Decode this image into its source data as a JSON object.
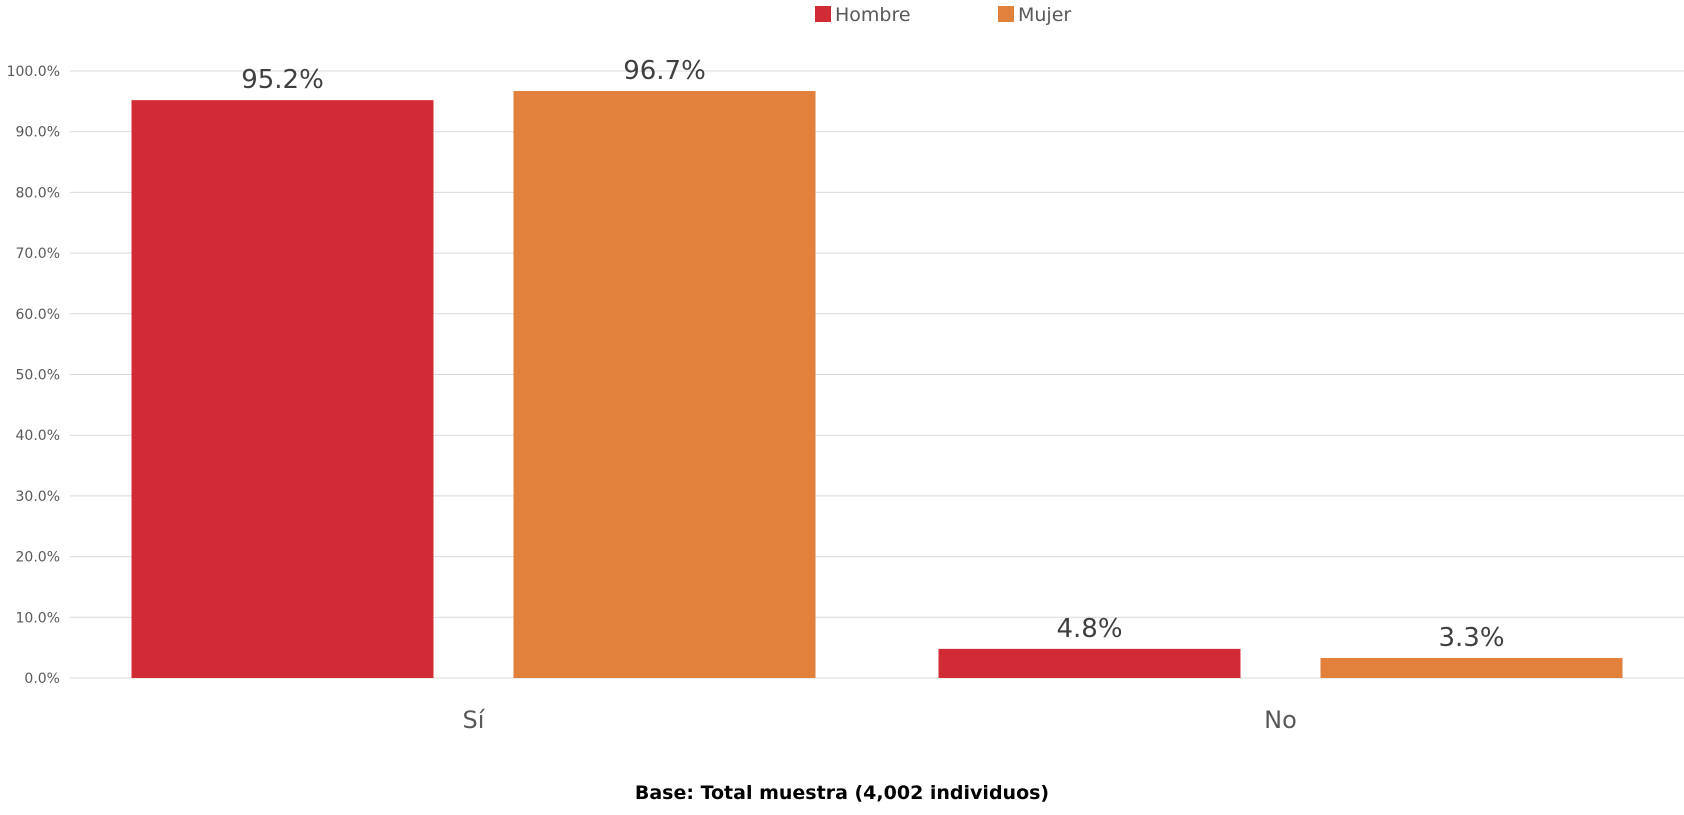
{
  "chart_data": {
    "type": "bar",
    "categories": [
      "Sí",
      "No"
    ],
    "series": [
      {
        "name": "Hombre",
        "values": [
          95.2,
          4.8
        ],
        "labels": [
          "95.2%",
          "4.8%"
        ],
        "color": "#d12c36"
      },
      {
        "name": "Mujer",
        "values": [
          96.7,
          3.3
        ],
        "labels": [
          "96.7%",
          "3.3%"
        ],
        "color": "#e1813c"
      }
    ],
    "ylim": [
      0,
      100
    ],
    "yticks": [
      "0.0%",
      "10.0%",
      "20.0%",
      "30.0%",
      "40.0%",
      "50.0%",
      "60.0%",
      "70.0%",
      "80.0%",
      "90.0%",
      "100.0%"
    ],
    "grid": true,
    "legend_position": "top-center"
  },
  "footnote": "Base: Total muestra (4,002 individuos)"
}
